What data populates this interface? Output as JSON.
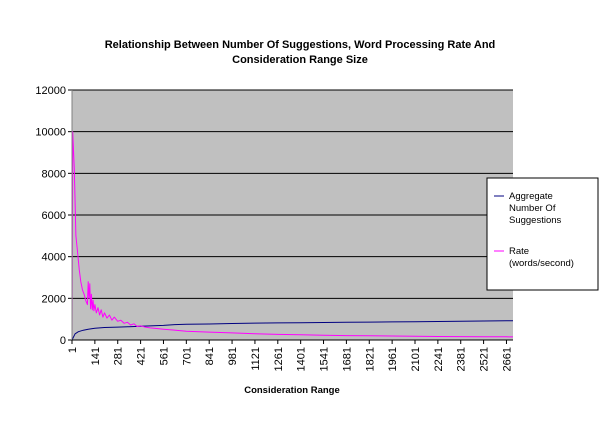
{
  "chart_data": {
    "type": "line",
    "title_lines": [
      "Relationship Between Number Of Suggestions, Word Processing Rate And",
      "Consideration Range Size"
    ],
    "xlabel": "Consideration Range",
    "ylabel": "",
    "x_tick_labels": [
      "1",
      "141",
      "281",
      "421",
      "561",
      "701",
      "841",
      "981",
      "1121",
      "1261",
      "1401",
      "1541",
      "1681",
      "1821",
      "1961",
      "2101",
      "2241",
      "2381",
      "2521",
      "2661"
    ],
    "xlim": [
      1,
      2701
    ],
    "ylim": [
      0,
      12000
    ],
    "y_ticks": [
      0,
      2000,
      4000,
      6000,
      8000,
      10000,
      12000
    ],
    "grid": true,
    "plot_background": "#c0c0c0",
    "legend_position": "right",
    "series": [
      {
        "name_lines": [
          "Aggregate",
          "Number Of",
          "Suggestions"
        ],
        "color": "#000080",
        "x": [
          1,
          20,
          40,
          70,
          100,
          141,
          200,
          281,
          350,
          421,
          500,
          561,
          630,
          701,
          841,
          981,
          1121,
          1261,
          1401,
          1541,
          1681,
          1821,
          1961,
          2101,
          2241,
          2381,
          2521,
          2661,
          2701
        ],
        "values": [
          0,
          300,
          400,
          470,
          520,
          560,
          600,
          620,
          640,
          660,
          680,
          700,
          740,
          760,
          770,
          790,
          810,
          820,
          830,
          840,
          850,
          860,
          870,
          880,
          890,
          900,
          910,
          920,
          920
        ]
      },
      {
        "name_lines": [
          "Rate",
          "(words/second)"
        ],
        "color": "#ff00ff",
        "x": [
          1,
          5,
          15,
          25,
          35,
          45,
          55,
          65,
          75,
          85,
          95,
          100,
          105,
          110,
          115,
          120,
          125,
          130,
          135,
          141,
          150,
          160,
          170,
          180,
          190,
          200,
          215,
          230,
          245,
          260,
          281,
          300,
          320,
          340,
          360,
          380,
          400,
          421,
          450,
          480,
          520,
          561,
          620,
          701,
          841,
          981,
          1121,
          1261,
          1401,
          1541,
          1681,
          1821,
          1961,
          2101,
          2241,
          2381,
          2521,
          2661,
          2701
        ],
        "values": [
          0,
          10000,
          8200,
          5000,
          4200,
          3400,
          2800,
          2400,
          2200,
          1900,
          1700,
          2800,
          2000,
          2700,
          1500,
          2200,
          1450,
          1900,
          1400,
          1700,
          1300,
          1550,
          1200,
          1450,
          1100,
          1300,
          1050,
          1200,
          950,
          1100,
          900,
          950,
          800,
          850,
          720,
          780,
          650,
          680,
          620,
          580,
          550,
          520,
          480,
          420,
          380,
          340,
          300,
          270,
          250,
          230,
          210,
          200,
          190,
          180,
          170,
          165,
          160,
          155,
          150
        ]
      }
    ]
  }
}
